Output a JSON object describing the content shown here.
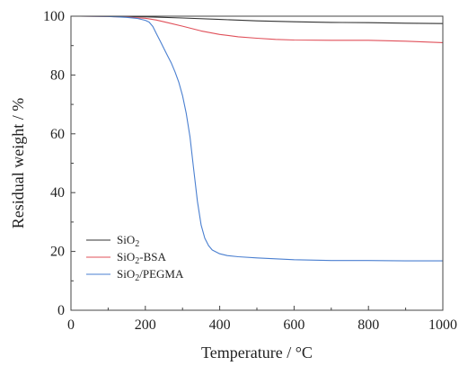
{
  "chart_data": {
    "type": "line",
    "xlabel": "Temperature / °C",
    "ylabel": "Residual weight / %",
    "xlim": [
      0,
      1000
    ],
    "ylim": [
      0,
      100
    ],
    "xticks": [
      0,
      200,
      400,
      600,
      800,
      1000
    ],
    "yticks": [
      0,
      20,
      40,
      60,
      80,
      100
    ],
    "grid": false,
    "legend_position": "bottom-left",
    "series": [
      {
        "name": "SiO2",
        "color": "#333333",
        "x": [
          25,
          100,
          200,
          300,
          400,
          500,
          600,
          700,
          800,
          900,
          1000
        ],
        "y": [
          100,
          100,
          99.8,
          99.4,
          98.9,
          98.4,
          98.1,
          97.9,
          97.8,
          97.6,
          97.5
        ]
      },
      {
        "name": "SiO2-BSA",
        "color": "#e0505a",
        "x": [
          25,
          100,
          150,
          200,
          230,
          260,
          300,
          350,
          400,
          450,
          500,
          550,
          600,
          700,
          800,
          900,
          1000
        ],
        "y": [
          100,
          99.9,
          99.7,
          99.3,
          98.7,
          97.8,
          96.6,
          95.0,
          93.8,
          93.0,
          92.5,
          92.1,
          91.9,
          91.8,
          91.8,
          91.5,
          91.0
        ]
      },
      {
        "name": "SiO2/PEGMA",
        "color": "#4a7fd0",
        "x": [
          25,
          100,
          150,
          180,
          200,
          210,
          220,
          230,
          240,
          250,
          260,
          270,
          280,
          290,
          300,
          310,
          320,
          330,
          340,
          350,
          360,
          370,
          380,
          400,
          420,
          450,
          500,
          600,
          700,
          800,
          900,
          1000
        ],
        "y": [
          100,
          99.9,
          99.6,
          99.2,
          98.6,
          98.0,
          96.5,
          94.0,
          91.5,
          89.0,
          86.5,
          84.0,
          81.0,
          77.5,
          73.0,
          67.0,
          59.0,
          48.0,
          37.0,
          29.0,
          24.5,
          22.0,
          20.5,
          19.2,
          18.6,
          18.2,
          17.8,
          17.2,
          16.9,
          16.9,
          16.8,
          16.8
        ]
      }
    ]
  }
}
